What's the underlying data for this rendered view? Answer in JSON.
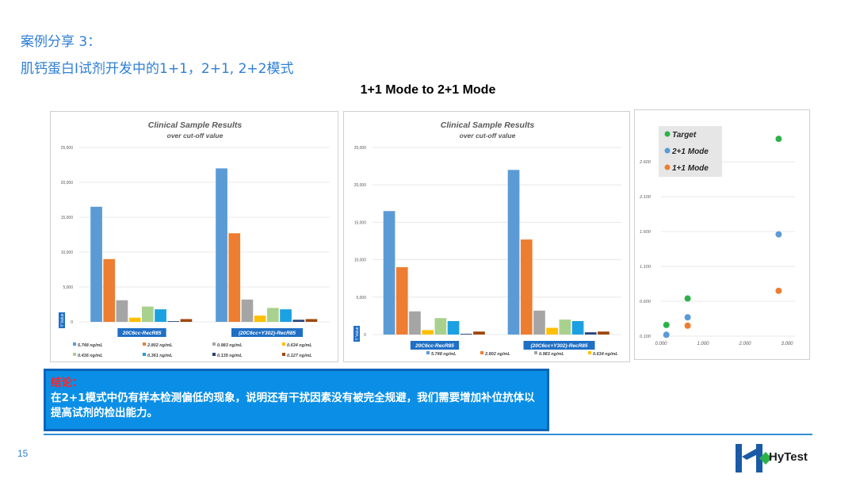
{
  "slide": {
    "title_line1": "案例分享 3：",
    "title_line2": "肌钙蛋白I试剂开发中的1+1，2+1, 2+2模式",
    "subtitle": "1+1 Mode to  2+1 Mode",
    "conclusion_label": "结论：",
    "conclusion_text": "在2+1模式中仍有样本检测偏低的现象，说明还有干扰因素没有被完全规避，我们需要增加补位抗体以提高试剂的检出能力。",
    "page_number": "15",
    "logo_text": "HyTest"
  },
  "colors": {
    "accent": "#2f7fd4",
    "conclusion_bg": "#0b8fe6",
    "conclusion_label": "#ff2222",
    "s1": "#5b9bd5",
    "s2": "#ed7d31",
    "s3": "#a5a5a5",
    "s4": "#ffc000",
    "s5": "#a9d18e",
    "s6": "#1ba1e2",
    "s7": "#264478",
    "s8": "#9e480e",
    "target": "#2db24a",
    "mode21": "#5b9bd5",
    "mode11": "#ed7d31"
  },
  "chart_data": [
    {
      "type": "bar",
      "title": "Clinical Sample Results",
      "subtitle": "over cut-off value",
      "ylabel": "Y Value",
      "ylim": [
        0,
        25000
      ],
      "yticks": [
        "0",
        "5,000",
        "10,000",
        "15,000",
        "20,000",
        "25,000"
      ],
      "categories": [
        "20C6cc-RecR85",
        "(20C6cc+Y302)-RecR85"
      ],
      "series": [
        {
          "name": "5.748 ng/mL",
          "values": [
            16500,
            22000
          ]
        },
        {
          "name": "2.802 ng/mL",
          "values": [
            9000,
            12700
          ]
        },
        {
          "name": "0.983 ng/mL",
          "values": [
            3100,
            3200
          ]
        },
        {
          "name": "0.634 ng/mL",
          "values": [
            600,
            900
          ]
        },
        {
          "name": "0.436 ng/mL",
          "values": [
            2200,
            2000
          ]
        },
        {
          "name": "0.361 ng/mL",
          "values": [
            1800,
            1800
          ]
        },
        {
          "name": "0.135 ng/mL",
          "values": [
            100,
            300
          ]
        },
        {
          "name": "0.127 ng/mL",
          "values": [
            400,
            400
          ]
        }
      ]
    },
    {
      "type": "bar",
      "title": "Clinical Sample Results",
      "subtitle": "over cut-off value",
      "ylabel": "Y Value",
      "ylim": [
        0,
        25000
      ],
      "yticks": [
        "0",
        "5,000",
        "10,000",
        "15,000",
        "20,000",
        "25,000"
      ],
      "categories": [
        "20C6cc-RecR85",
        "(20C6cc+Y302)-RecR85"
      ],
      "series": [
        {
          "name": "5.748 ng/mL",
          "values": [
            16500,
            22000
          ]
        },
        {
          "name": "2.802 ng/mL",
          "values": [
            9000,
            12700
          ]
        },
        {
          "name": "0.983 ng/mL",
          "values": [
            3100,
            3200
          ]
        },
        {
          "name": "0.634 ng/mL",
          "values": [
            600,
            900
          ]
        },
        {
          "name": "",
          "values": [
            2200,
            2000
          ]
        },
        {
          "name": "",
          "values": [
            1800,
            1800
          ]
        },
        {
          "name": "",
          "values": [
            100,
            300
          ]
        },
        {
          "name": "",
          "values": [
            400,
            400
          ]
        }
      ]
    },
    {
      "type": "scatter",
      "xlim": [
        0,
        3
      ],
      "ylim": [
        0.1,
        3.0
      ],
      "xticks": [
        "0.000",
        "1.000",
        "2.000",
        "3.000"
      ],
      "yticks": [
        "0.100",
        "0.600",
        "1.100",
        "1.600",
        "2.100",
        "2.600"
      ],
      "legend_position": "top-left",
      "series": [
        {
          "name": "Target",
          "points": [
            [
              0.127,
              0.26
            ],
            [
              0.634,
              0.64
            ],
            [
              2.8,
              2.93
            ]
          ]
        },
        {
          "name": "2+1 Mode",
          "points": [
            [
              0.127,
              0.12
            ],
            [
              0.634,
              0.37
            ],
            [
              2.8,
              1.56
            ]
          ]
        },
        {
          "name": "1+1 Mode",
          "points": [
            [
              0.634,
              0.25
            ],
            [
              2.8,
              0.75
            ]
          ]
        }
      ]
    }
  ]
}
